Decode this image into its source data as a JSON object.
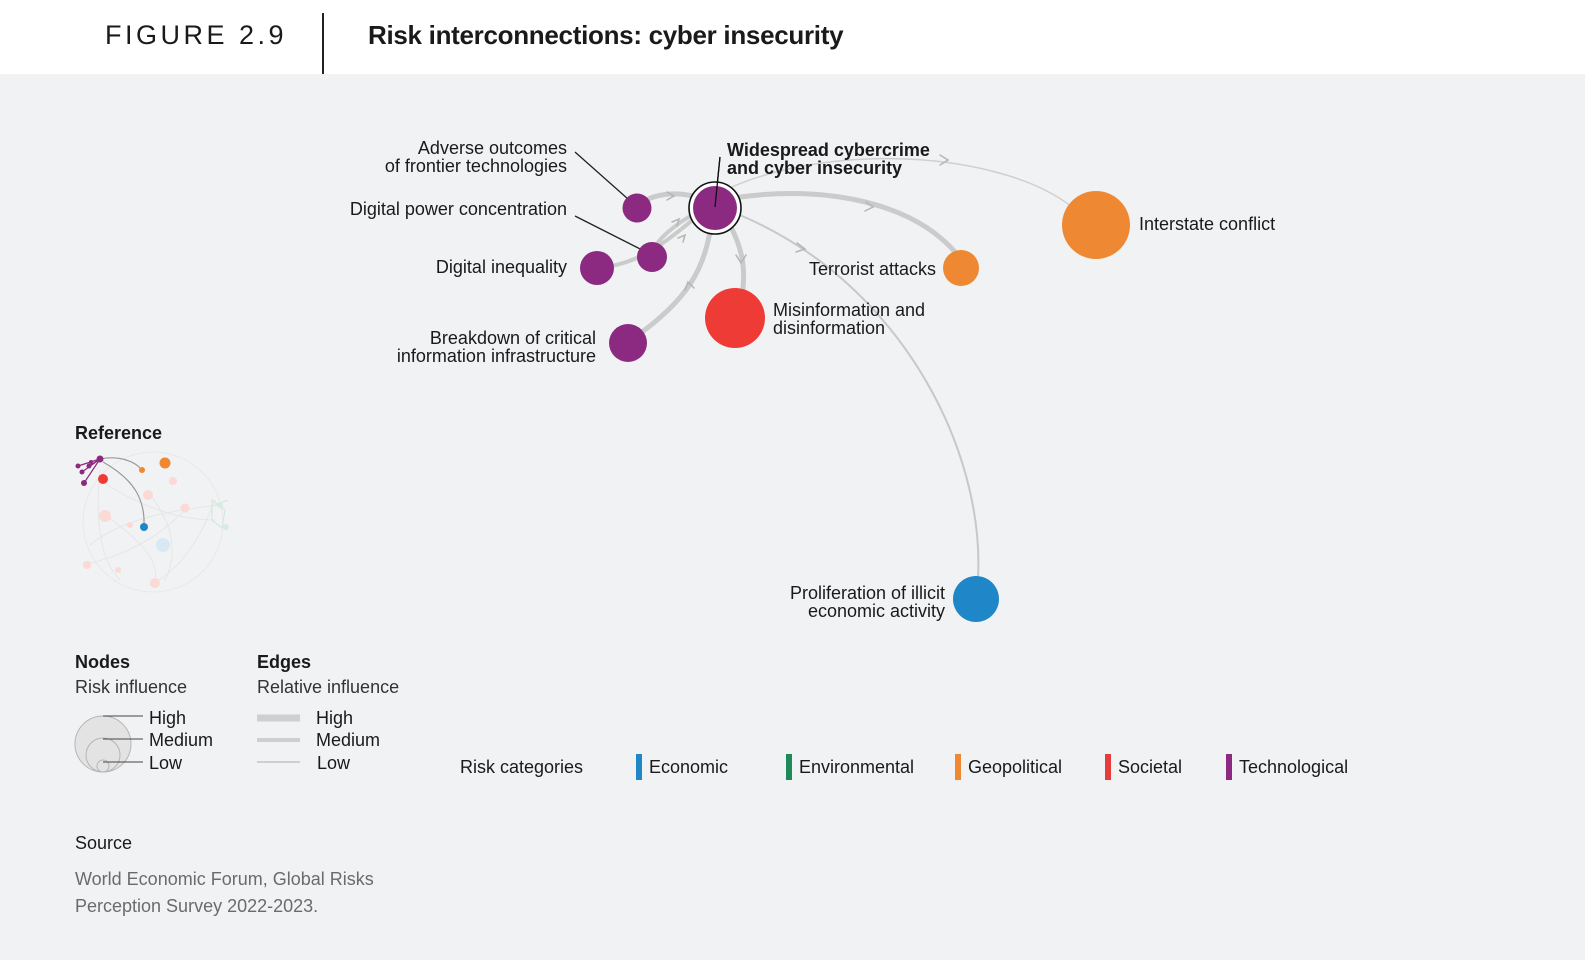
{
  "header": {
    "figure_number": "FIGURE 2.9",
    "title": "Risk interconnections: cyber insecurity"
  },
  "nodes": {
    "central": {
      "line1": "Widespread cybercrime",
      "line2": "and cyber insecurity",
      "category": "Technological"
    },
    "adverse": {
      "line1": "Adverse outcomes",
      "line2": "of frontier technologies",
      "category": "Technological"
    },
    "power": {
      "label": "Digital power concentration",
      "category": "Technological"
    },
    "inequality": {
      "label": "Digital inequality",
      "category": "Technological"
    },
    "breakdown": {
      "line1": "Breakdown of critical",
      "line2": "information infrastructure",
      "category": "Technological"
    },
    "misinfo": {
      "line1": "Misinformation and",
      "line2": "disinformation",
      "category": "Societal"
    },
    "terrorist": {
      "label": "Terrorist attacks",
      "category": "Geopolitical"
    },
    "interstate": {
      "label": "Interstate conflict",
      "category": "Geopolitical"
    },
    "illicit": {
      "line1": "Proliferation of illicit",
      "line2": "economic activity",
      "category": "Economic"
    }
  },
  "reference": {
    "title": "Reference"
  },
  "legend": {
    "nodes": {
      "title": "Nodes",
      "subtitle": "Risk influence",
      "high": "High",
      "medium": "Medium",
      "low": "Low"
    },
    "edges": {
      "title": "Edges",
      "subtitle": "Relative influence",
      "high": "High",
      "medium": "Medium",
      "low": "Low"
    }
  },
  "categories": {
    "title": "Risk categories",
    "items": [
      {
        "name": "Economic",
        "color": "#1f86c8"
      },
      {
        "name": "Environmental",
        "color": "#1e8a5a"
      },
      {
        "name": "Geopolitical",
        "color": "#ee8833"
      },
      {
        "name": "Societal",
        "color": "#e83b3b"
      },
      {
        "name": "Technological",
        "color": "#8b2a80"
      }
    ]
  },
  "source": {
    "title": "Source",
    "text": "World Economic Forum, Global Risks Perception Survey 2022-2023."
  }
}
